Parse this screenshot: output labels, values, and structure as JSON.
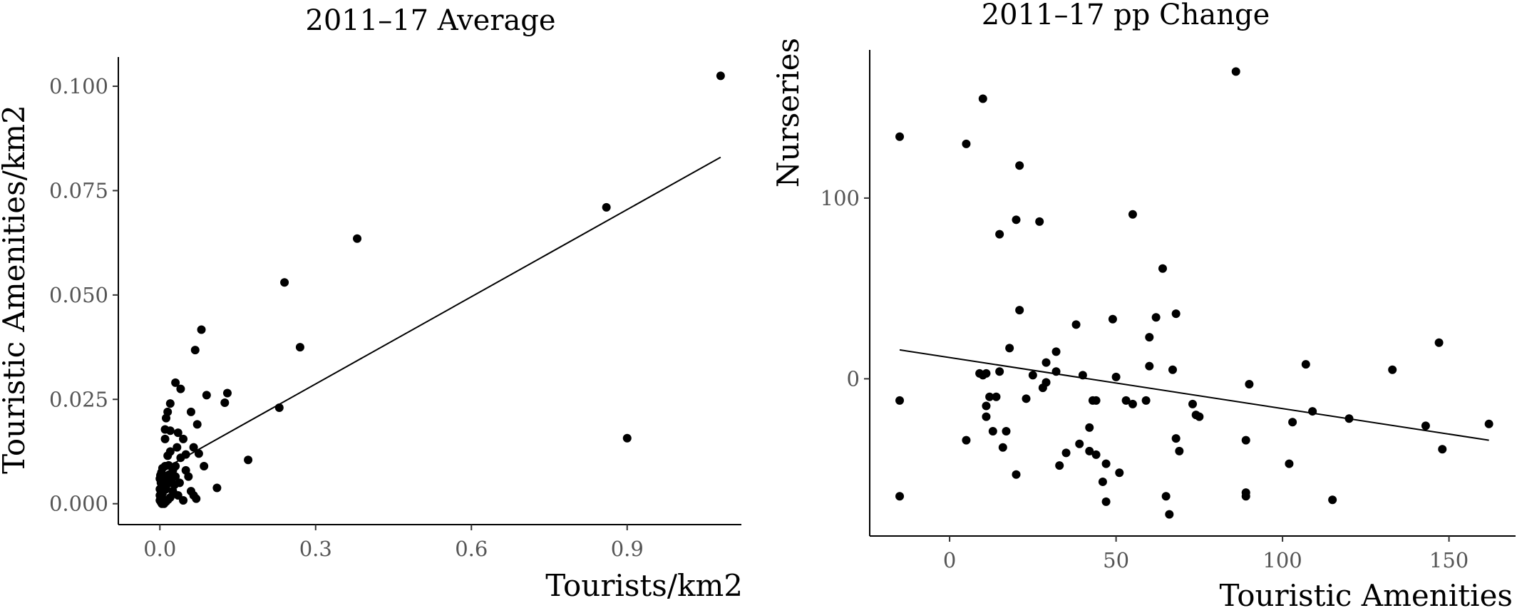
{
  "chart_data": [
    {
      "type": "scatter",
      "title": "2011–17 Average",
      "xlabel": "Tourists/km2",
      "ylabel": "Touristic Amenities/km2",
      "xlim": [
        -0.08,
        1.12
      ],
      "ylim": [
        -0.005,
        0.107
      ],
      "xticks": [
        0.0,
        0.3,
        0.6,
        0.9
      ],
      "xtick_labels": [
        "0.0",
        "0.3",
        "0.6",
        "0.9"
      ],
      "yticks": [
        0.0,
        0.025,
        0.05,
        0.075,
        0.1
      ],
      "ytick_labels": [
        "0.000",
        "0.025",
        "0.050",
        "0.075",
        "0.100"
      ],
      "fit_line": {
        "x": [
          0.01,
          1.08
        ],
        "y": [
          0.0085,
          0.083
        ]
      },
      "points": [
        {
          "x": 1.08,
          "y": 0.1025
        },
        {
          "x": 0.86,
          "y": 0.071
        },
        {
          "x": 0.9,
          "y": 0.0157
        },
        {
          "x": 0.38,
          "y": 0.0635
        },
        {
          "x": 0.24,
          "y": 0.053
        },
        {
          "x": 0.27,
          "y": 0.0375
        },
        {
          "x": 0.23,
          "y": 0.023
        },
        {
          "x": 0.17,
          "y": 0.0105
        },
        {
          "x": 0.13,
          "y": 0.0265
        },
        {
          "x": 0.125,
          "y": 0.0242
        },
        {
          "x": 0.11,
          "y": 0.0038
        },
        {
          "x": 0.09,
          "y": 0.026
        },
        {
          "x": 0.08,
          "y": 0.0417
        },
        {
          "x": 0.085,
          "y": 0.009
        },
        {
          "x": 0.068,
          "y": 0.0368
        },
        {
          "x": 0.072,
          "y": 0.019
        },
        {
          "x": 0.075,
          "y": 0.012
        },
        {
          "x": 0.06,
          "y": 0.022
        },
        {
          "x": 0.065,
          "y": 0.0135
        },
        {
          "x": 0.05,
          "y": 0.008
        },
        {
          "x": 0.045,
          "y": 0.0155
        },
        {
          "x": 0.04,
          "y": 0.0275
        },
        {
          "x": 0.03,
          "y": 0.029
        },
        {
          "x": 0.035,
          "y": 0.017
        },
        {
          "x": 0.04,
          "y": 0.011
        },
        {
          "x": 0.038,
          "y": 0.005
        },
        {
          "x": 0.03,
          "y": 0.0065
        },
        {
          "x": 0.025,
          "y": 0.003
        },
        {
          "x": 0.02,
          "y": 0.024
        },
        {
          "x": 0.015,
          "y": 0.022
        },
        {
          "x": 0.012,
          "y": 0.0205
        },
        {
          "x": 0.02,
          "y": 0.0175
        },
        {
          "x": 0.01,
          "y": 0.0178
        },
        {
          "x": 0.01,
          "y": 0.0155
        },
        {
          "x": 0.02,
          "y": 0.0125
        },
        {
          "x": 0.015,
          "y": 0.0115
        },
        {
          "x": 0.01,
          "y": 0.009
        },
        {
          "x": 0.005,
          "y": 0.0085
        },
        {
          "x": 0.003,
          "y": 0.0075
        },
        {
          "x": 0.008,
          "y": 0.0065
        },
        {
          "x": 0.0,
          "y": 0.006
        },
        {
          "x": 0.002,
          "y": 0.005
        },
        {
          "x": 0.004,
          "y": 0.0045
        },
        {
          "x": 0.006,
          "y": 0.004
        },
        {
          "x": 0.0,
          "y": 0.0035
        },
        {
          "x": 0.002,
          "y": 0.003
        },
        {
          "x": 0.005,
          "y": 0.0025
        },
        {
          "x": 0.0,
          "y": 0.002
        },
        {
          "x": 0.003,
          "y": 0.0015
        },
        {
          "x": 0.006,
          "y": 0.001
        },
        {
          "x": 0.0,
          "y": 0.0008
        },
        {
          "x": 0.002,
          "y": 0.0004
        },
        {
          "x": 0.004,
          "y": 0.0
        },
        {
          "x": 0.008,
          "y": 0.0
        },
        {
          "x": 0.012,
          "y": 0.0005
        },
        {
          "x": 0.016,
          "y": 0.001
        },
        {
          "x": 0.02,
          "y": 0.0015
        },
        {
          "x": 0.025,
          "y": 0.008
        },
        {
          "x": 0.018,
          "y": 0.007
        },
        {
          "x": 0.03,
          "y": 0.009
        },
        {
          "x": 0.035,
          "y": 0.002
        },
        {
          "x": 0.045,
          "y": 0.0008
        },
        {
          "x": 0.06,
          "y": 0.003
        },
        {
          "x": 0.065,
          "y": 0.002
        },
        {
          "x": 0.07,
          "y": 0.0012
        },
        {
          "x": 0.055,
          "y": 0.0065
        },
        {
          "x": 0.028,
          "y": 0.0045
        },
        {
          "x": 0.012,
          "y": 0.0035
        },
        {
          "x": 0.008,
          "y": 0.0055
        },
        {
          "x": 0.022,
          "y": 0.006
        },
        {
          "x": 0.015,
          "y": 0.0048
        },
        {
          "x": 0.001,
          "y": 0.0068
        },
        {
          "x": 0.017,
          "y": 0.0092
        },
        {
          "x": 0.05,
          "y": 0.0118
        },
        {
          "x": 0.033,
          "y": 0.0135
        }
      ]
    },
    {
      "type": "scatter",
      "title": "2011–17 pp Change",
      "xlabel": "Touristic Amenities",
      "ylabel": "Nurseries",
      "xlim": [
        -24,
        170
      ],
      "ylim": [
        -87,
        182
      ],
      "xticks": [
        0,
        50,
        100,
        150
      ],
      "xtick_labels": [
        "0",
        "50",
        "100",
        "150"
      ],
      "yticks": [
        0,
        100
      ],
      "ytick_labels": [
        "0",
        "100"
      ],
      "fit_line": {
        "x": [
          -15,
          162
        ],
        "y": [
          16,
          -34
        ]
      },
      "points": [
        {
          "x": -15,
          "y": 134
        },
        {
          "x": -15,
          "y": -12
        },
        {
          "x": -15,
          "y": -65
        },
        {
          "x": 5,
          "y": 130
        },
        {
          "x": 5,
          "y": -34
        },
        {
          "x": 10,
          "y": 155
        },
        {
          "x": 9,
          "y": 3
        },
        {
          "x": 10,
          "y": 2
        },
        {
          "x": 11,
          "y": 3
        },
        {
          "x": 11,
          "y": -15
        },
        {
          "x": 12,
          "y": -10
        },
        {
          "x": 11,
          "y": -21
        },
        {
          "x": 13,
          "y": -29
        },
        {
          "x": 14,
          "y": -10
        },
        {
          "x": 15,
          "y": 80
        },
        {
          "x": 15,
          "y": 4
        },
        {
          "x": 16,
          "y": -38
        },
        {
          "x": 17,
          "y": -29
        },
        {
          "x": 18,
          "y": 17
        },
        {
          "x": 20,
          "y": 88
        },
        {
          "x": 20,
          "y": -53
        },
        {
          "x": 21,
          "y": 118
        },
        {
          "x": 21,
          "y": 38
        },
        {
          "x": 23,
          "y": -11
        },
        {
          "x": 25,
          "y": 2
        },
        {
          "x": 27,
          "y": 87
        },
        {
          "x": 28,
          "y": -5
        },
        {
          "x": 29,
          "y": 9
        },
        {
          "x": 29,
          "y": -2
        },
        {
          "x": 32,
          "y": 15
        },
        {
          "x": 32,
          "y": 4
        },
        {
          "x": 33,
          "y": -48
        },
        {
          "x": 35,
          "y": -41
        },
        {
          "x": 38,
          "y": 30
        },
        {
          "x": 39,
          "y": -36
        },
        {
          "x": 40,
          "y": 2
        },
        {
          "x": 42,
          "y": -27
        },
        {
          "x": 42,
          "y": -40
        },
        {
          "x": 43,
          "y": -12
        },
        {
          "x": 44,
          "y": -42
        },
        {
          "x": 44,
          "y": -12
        },
        {
          "x": 46,
          "y": -57
        },
        {
          "x": 47,
          "y": -47
        },
        {
          "x": 47,
          "y": -68
        },
        {
          "x": 49,
          "y": 33
        },
        {
          "x": 50,
          "y": 1
        },
        {
          "x": 51,
          "y": -52
        },
        {
          "x": 53,
          "y": -12
        },
        {
          "x": 55,
          "y": 91
        },
        {
          "x": 55,
          "y": -14
        },
        {
          "x": 59,
          "y": -12
        },
        {
          "x": 60,
          "y": 23
        },
        {
          "x": 60,
          "y": 7
        },
        {
          "x": 62,
          "y": 34
        },
        {
          "x": 64,
          "y": 61
        },
        {
          "x": 65,
          "y": -65
        },
        {
          "x": 66,
          "y": -75
        },
        {
          "x": 67,
          "y": 5
        },
        {
          "x": 68,
          "y": -33
        },
        {
          "x": 68,
          "y": 36
        },
        {
          "x": 69,
          "y": -40
        },
        {
          "x": 73,
          "y": -14
        },
        {
          "x": 74,
          "y": -20
        },
        {
          "x": 75,
          "y": -21
        },
        {
          "x": 86,
          "y": 170
        },
        {
          "x": 89,
          "y": -63
        },
        {
          "x": 89,
          "y": -65
        },
        {
          "x": 89,
          "y": -34
        },
        {
          "x": 90,
          "y": -3
        },
        {
          "x": 102,
          "y": -47
        },
        {
          "x": 103,
          "y": -24
        },
        {
          "x": 107,
          "y": 8
        },
        {
          "x": 109,
          "y": -18
        },
        {
          "x": 115,
          "y": -67
        },
        {
          "x": 120,
          "y": -22
        },
        {
          "x": 133,
          "y": 5
        },
        {
          "x": 143,
          "y": -26
        },
        {
          "x": 147,
          "y": 20
        },
        {
          "x": 148,
          "y": -39
        },
        {
          "x": 162,
          "y": -25
        }
      ]
    }
  ]
}
